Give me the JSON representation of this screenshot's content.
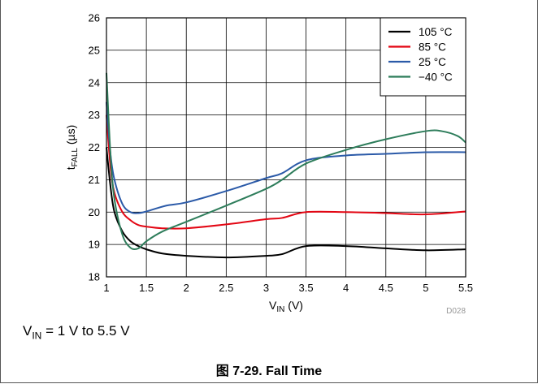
{
  "chart_data": {
    "type": "line",
    "xlabel": {
      "main": "V",
      "sub": "IN",
      "unit": " (V)"
    },
    "ylabel": {
      "main": "t",
      "sub": "FALL",
      "unit": " (µs)"
    },
    "xlim": [
      1,
      5.5
    ],
    "ylim": [
      18,
      26
    ],
    "xticks": [
      1,
      1.5,
      2,
      2.5,
      3,
      3.5,
      4,
      4.5,
      5,
      5.5
    ],
    "xtick_labels": [
      "1",
      "1.5",
      "2",
      "2.5",
      "3",
      "3.5",
      "4",
      "4.5",
      "5",
      "5.5"
    ],
    "yticks": [
      18,
      19,
      20,
      21,
      22,
      23,
      24,
      25,
      26
    ],
    "ytick_labels": [
      "18",
      "19",
      "20",
      "21",
      "22",
      "23",
      "24",
      "25",
      "26"
    ],
    "grid": true,
    "legend_position": "top-right",
    "watermark": "D028",
    "series": [
      {
        "name": "105 °C",
        "color": "#000000",
        "x": [
          1.0,
          1.05,
          1.1,
          1.2,
          1.3,
          1.4,
          1.5,
          1.7,
          2.0,
          2.5,
          3.0,
          3.2,
          3.5,
          4.0,
          4.5,
          5.0,
          5.5
        ],
        "y": [
          22.0,
          20.8,
          20.0,
          19.4,
          19.1,
          18.95,
          18.85,
          18.72,
          18.65,
          18.6,
          18.65,
          18.7,
          18.95,
          18.95,
          18.88,
          18.82,
          18.85
        ]
      },
      {
        "name": "85 °C",
        "color": "#e30613",
        "x": [
          1.0,
          1.05,
          1.1,
          1.2,
          1.3,
          1.4,
          1.5,
          1.7,
          2.0,
          2.5,
          3.0,
          3.2,
          3.5,
          4.0,
          4.5,
          5.0,
          5.5
        ],
        "y": [
          23.0,
          21.4,
          20.6,
          20.0,
          19.75,
          19.6,
          19.55,
          19.5,
          19.5,
          19.62,
          19.78,
          19.82,
          20.0,
          20.0,
          19.97,
          19.93,
          20.02
        ]
      },
      {
        "name": "25 °C",
        "color": "#2b5aa8",
        "x": [
          1.0,
          1.05,
          1.1,
          1.2,
          1.3,
          1.4,
          1.5,
          1.75,
          2.0,
          2.5,
          3.0,
          3.2,
          3.5,
          4.0,
          4.5,
          5.0,
          5.5
        ],
        "y": [
          23.4,
          21.8,
          21.0,
          20.25,
          20.0,
          19.97,
          20.02,
          20.2,
          20.3,
          20.65,
          21.05,
          21.2,
          21.6,
          21.75,
          21.8,
          21.85,
          21.85
        ]
      },
      {
        "name": "−40 °C",
        "color": "#2e7d5b",
        "x": [
          1.0,
          1.05,
          1.1,
          1.2,
          1.3,
          1.4,
          1.5,
          1.7,
          2.0,
          2.5,
          3.0,
          3.2,
          3.5,
          4.0,
          4.5,
          5.0,
          5.2,
          5.4,
          5.5
        ],
        "y": [
          24.3,
          21.8,
          20.4,
          19.3,
          18.9,
          18.88,
          19.1,
          19.4,
          19.7,
          20.2,
          20.72,
          21.0,
          21.5,
          21.92,
          22.25,
          22.5,
          22.5,
          22.35,
          22.15
        ]
      }
    ]
  },
  "caption": {
    "main": "V",
    "sub": "IN",
    "rest": " = 1 V to 5.5 V"
  },
  "figure_title": "图 7-29. Fall Time"
}
